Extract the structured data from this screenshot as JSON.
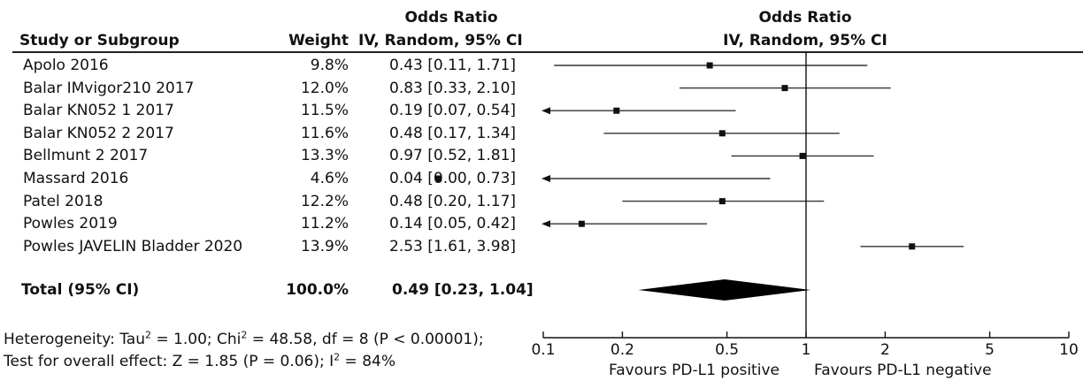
{
  "headers": {
    "study": "Study or Subgroup",
    "weight": "Weight",
    "or_top": "Odds Ratio",
    "or_method": "IV, Random, 95% CI",
    "plot_top": "Odds Ratio",
    "plot_method": "IV, Random, 95% CI"
  },
  "total": {
    "label": "Total (95% CI)",
    "weight": "100.0%",
    "ci_text": "0.49 [0.23, 1.04]"
  },
  "footer": {
    "heterogeneity_a": "Heterogeneity: Tau",
    "heterogeneity_b": " = 1.00; Chi",
    "heterogeneity_c": " = 48.58, df = 8 (P < 0.00001); ",
    "overall_a": "Test for overall effect: Z = 1.85 (P = 0.06); I",
    "overall_b": " = 84%",
    "sup2": "2",
    "favours_left": "Favours PD-L1 positive",
    "favours_right": "Favours PD-L1 negative"
  },
  "chart_data": {
    "type": "forest",
    "x_scale": "log",
    "xlim": [
      0.1,
      10
    ],
    "reference_line": 1,
    "ticks": [
      0.1,
      0.2,
      0.5,
      1,
      2,
      5,
      10
    ],
    "tick_labels": [
      "0.1",
      "0.2",
      "0.5",
      "1",
      "2",
      "5",
      "10"
    ],
    "studies": [
      {
        "name": "Apolo 2016",
        "weight": "9.8%",
        "ci_text": "0.43 [0.11, 1.71]",
        "or": 0.43,
        "lower": 0.11,
        "upper": 1.71
      },
      {
        "name": "Balar IMvigor210 2017",
        "weight": "12.0%",
        "ci_text": "0.83 [0.33, 2.10]",
        "or": 0.83,
        "lower": 0.33,
        "upper": 2.1
      },
      {
        "name": "Balar KN052 1 2017",
        "weight": "11.5%",
        "ci_text": "0.19 [0.07, 0.54]",
        "or": 0.19,
        "lower": 0.07,
        "upper": 0.54
      },
      {
        "name": "Balar KN052 2 2017",
        "weight": "11.6%",
        "ci_text": "0.48 [0.17, 1.34]",
        "or": 0.48,
        "lower": 0.17,
        "upper": 1.34
      },
      {
        "name": "Bellmunt 2 2017",
        "weight": "13.3%",
        "ci_text": "0.97 [0.52, 1.81]",
        "or": 0.97,
        "lower": 0.52,
        "upper": 1.81
      },
      {
        "name": "Massard 2016",
        "weight": "4.6%",
        "ci_text": "0.04 [0.00, 0.73]",
        "or": 0.04,
        "lower": 0.0,
        "upper": 0.73
      },
      {
        "name": "Patel 2018",
        "weight": "12.2%",
        "ci_text": "0.48 [0.20, 1.17]",
        "or": 0.48,
        "lower": 0.2,
        "upper": 1.17
      },
      {
        "name": "Powles 2019",
        "weight": "11.2%",
        "ci_text": "0.14 [0.05, 0.42]",
        "or": 0.14,
        "lower": 0.05,
        "upper": 0.42
      },
      {
        "name": "Powles JAVELIN Bladder 2020",
        "weight": "13.9%",
        "ci_text": "2.53 [1.61, 3.98]",
        "or": 2.53,
        "lower": 1.61,
        "upper": 3.98
      }
    ],
    "pooled": {
      "or": 0.49,
      "lower": 0.23,
      "upper": 1.04
    }
  }
}
